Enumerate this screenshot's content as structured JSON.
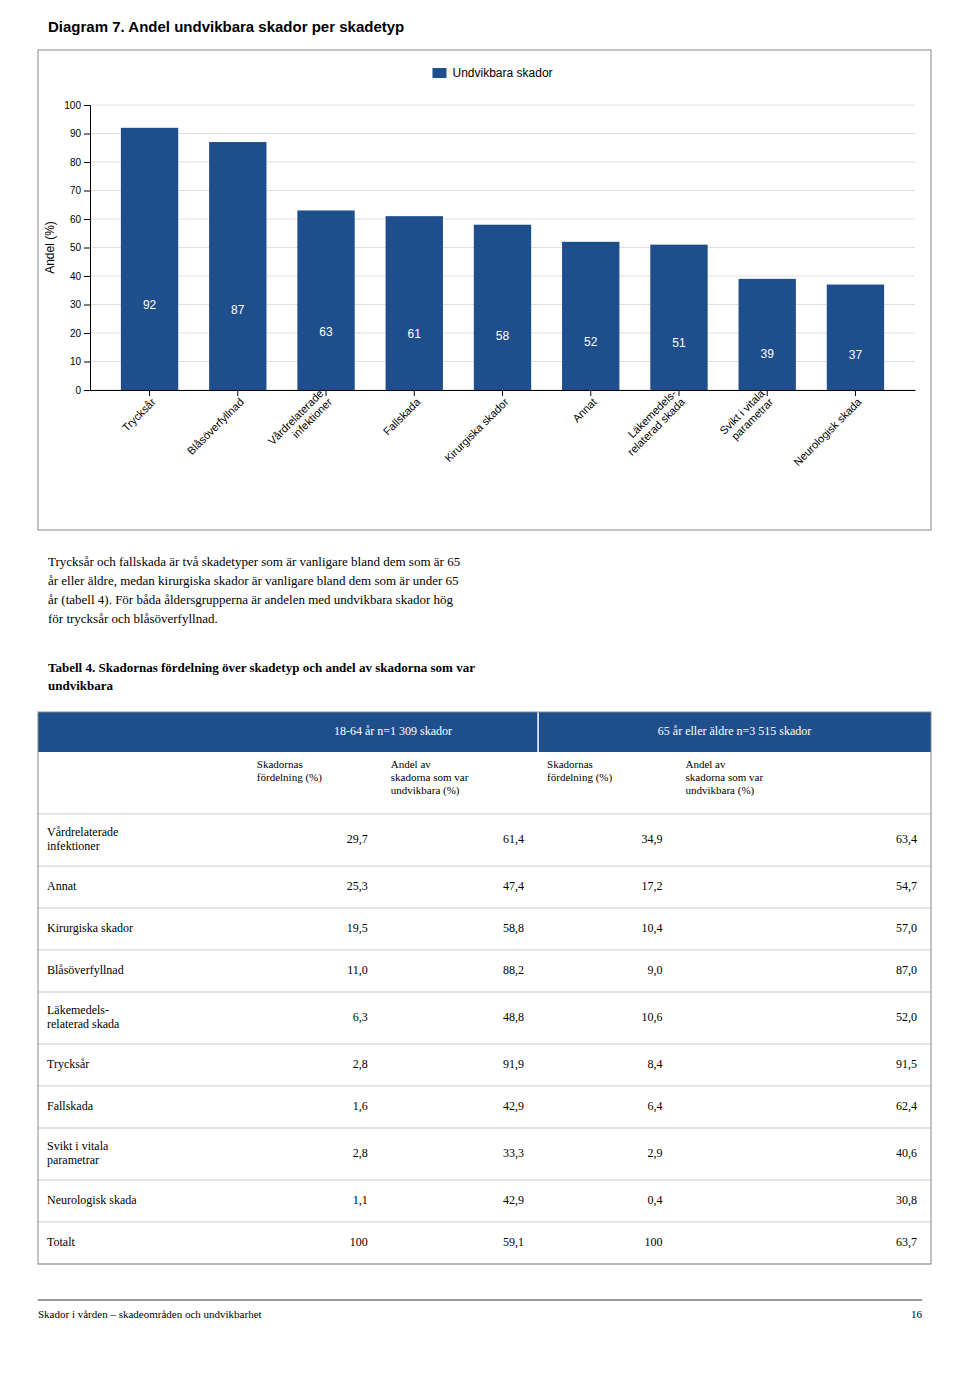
{
  "chart_data": {
    "type": "bar",
    "title": "Diagram 7. Andel undvikbara skador per skadetyp",
    "ylabel": "Andel (%)",
    "categories": [
      "Trycksår",
      "Blåsöverfyllnad",
      "Vårdrelaterade\ninfektioner",
      "Fallskada",
      "Kirurgiska skador",
      "Annat",
      "Läkemedels-\nrelaterad skada",
      "Svikt i vitala\nparametrar",
      "Neurologisk skada"
    ],
    "series": [
      {
        "name": "Undvikbara skador",
        "color": "#1F4E8C",
        "values": [
          92,
          87,
          63,
          61,
          58,
          52,
          51,
          39,
          37
        ]
      }
    ],
    "ylim": [
      0,
      100
    ],
    "yticks": [
      0,
      10,
      20,
      30,
      40,
      50,
      60,
      70,
      80,
      90,
      100
    ],
    "grid": true,
    "legend": "top",
    "data_labels": true
  },
  "paragraph": [
    "Trycksår och fallskada är två skadetyper som är vanligare bland dem som är 65",
    "år eller äldre, medan kirurgiska skador är vanligare bland dem som är under 65",
    "år (tabell 4). För båda åldersgrupperna är andelen med undvikbara skador hög",
    "för trycksår och blåsöverfyllnad."
  ],
  "table": {
    "title": [
      "Tabell 4. Skadornas fördelning över skadetyp och andel av skadorna som var",
      "undvikbara"
    ],
    "header_color": "#1F4E8C",
    "header_text_color": "#FFFFFF",
    "header_groups": [
      "18-64 år n=1 309 skador",
      "65 år eller äldre n=3 515 skador"
    ],
    "columns": [
      "Skadornas\nfördelning (%)",
      "Andel av\nskadorna som var\nundvikbara (%)",
      "Skadornas\nfördelning (%)",
      "Andel av\nskadorna som var\nundvikbara (%)"
    ],
    "rows": [
      {
        "label": "Vårdrelaterade\ninfektioner",
        "cells": [
          "29,7",
          "61,4",
          "34,9",
          "63,4"
        ]
      },
      {
        "label": "Annat",
        "cells": [
          "25,3",
          "47,4",
          "17,2",
          "54,7"
        ]
      },
      {
        "label": "Kirurgiska skador",
        "cells": [
          "19,5",
          "58,8",
          "10,4",
          "57,0"
        ]
      },
      {
        "label": "Blåsöverfyllnad",
        "cells": [
          "11,0",
          "88,2",
          "9,0",
          "87,0"
        ]
      },
      {
        "label": "Läkemedels-\nrelaterad skada",
        "cells": [
          "6,3",
          "48,8",
          "10,6",
          "52,0"
        ]
      },
      {
        "label": "Trycksår",
        "cells": [
          "2,8",
          "91,9",
          "8,4",
          "91,5"
        ]
      },
      {
        "label": "Fallskada",
        "cells": [
          "1,6",
          "42,9",
          "6,4",
          "62,4"
        ]
      },
      {
        "label": "Svikt i vitala\nparametrar",
        "cells": [
          "2,8",
          "33,3",
          "2,9",
          "40,6"
        ]
      },
      {
        "label": "Neurologisk skada",
        "cells": [
          "1,1",
          "42,9",
          "0,4",
          "30,8"
        ]
      },
      {
        "label": "Totalt",
        "cells": [
          "100",
          "59,1",
          "100",
          "63,7"
        ]
      }
    ]
  },
  "footer": {
    "text": "Skador i vården – skadeområden och undvikbarhet",
    "page": "16"
  }
}
